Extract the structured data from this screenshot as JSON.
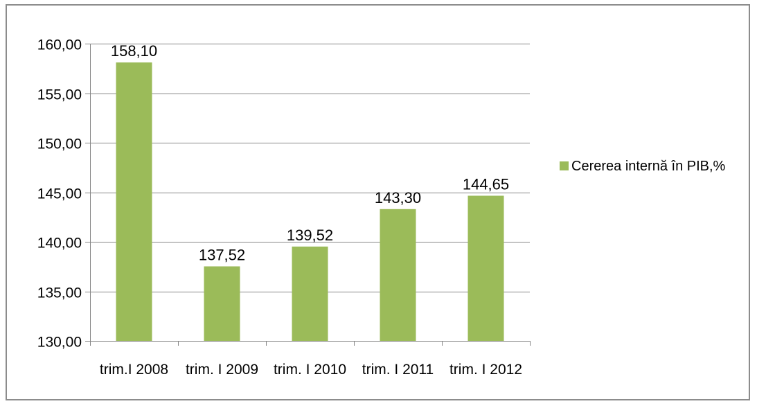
{
  "chart_data": {
    "type": "bar",
    "categories": [
      "trim.I 2008",
      "trim. I 2009",
      "trim. I 2010",
      "trim. I 2011",
      "trim. I 2012"
    ],
    "series": [
      {
        "name": "Cererea internă în PIB,%",
        "values": [
          158.1,
          137.52,
          139.52,
          143.3,
          144.65
        ],
        "value_labels": [
          "158,10",
          "137,52",
          "139,52",
          "143,30",
          "144,65"
        ],
        "color": "#9bbb59"
      }
    ],
    "ylim": [
      130,
      160
    ],
    "yticks": [
      130,
      135,
      140,
      145,
      150,
      155,
      160
    ],
    "ytick_labels": [
      "130,00",
      "135,00",
      "140,00",
      "145,00",
      "150,00",
      "155,00",
      "160,00"
    ],
    "grid": true,
    "legend_position": "right",
    "title": "",
    "xlabel": "",
    "ylabel": ""
  },
  "colors": {
    "bar": "#9bbb59",
    "gridline": "#868686",
    "axis": "#868686",
    "border": "#8c8c8c"
  }
}
